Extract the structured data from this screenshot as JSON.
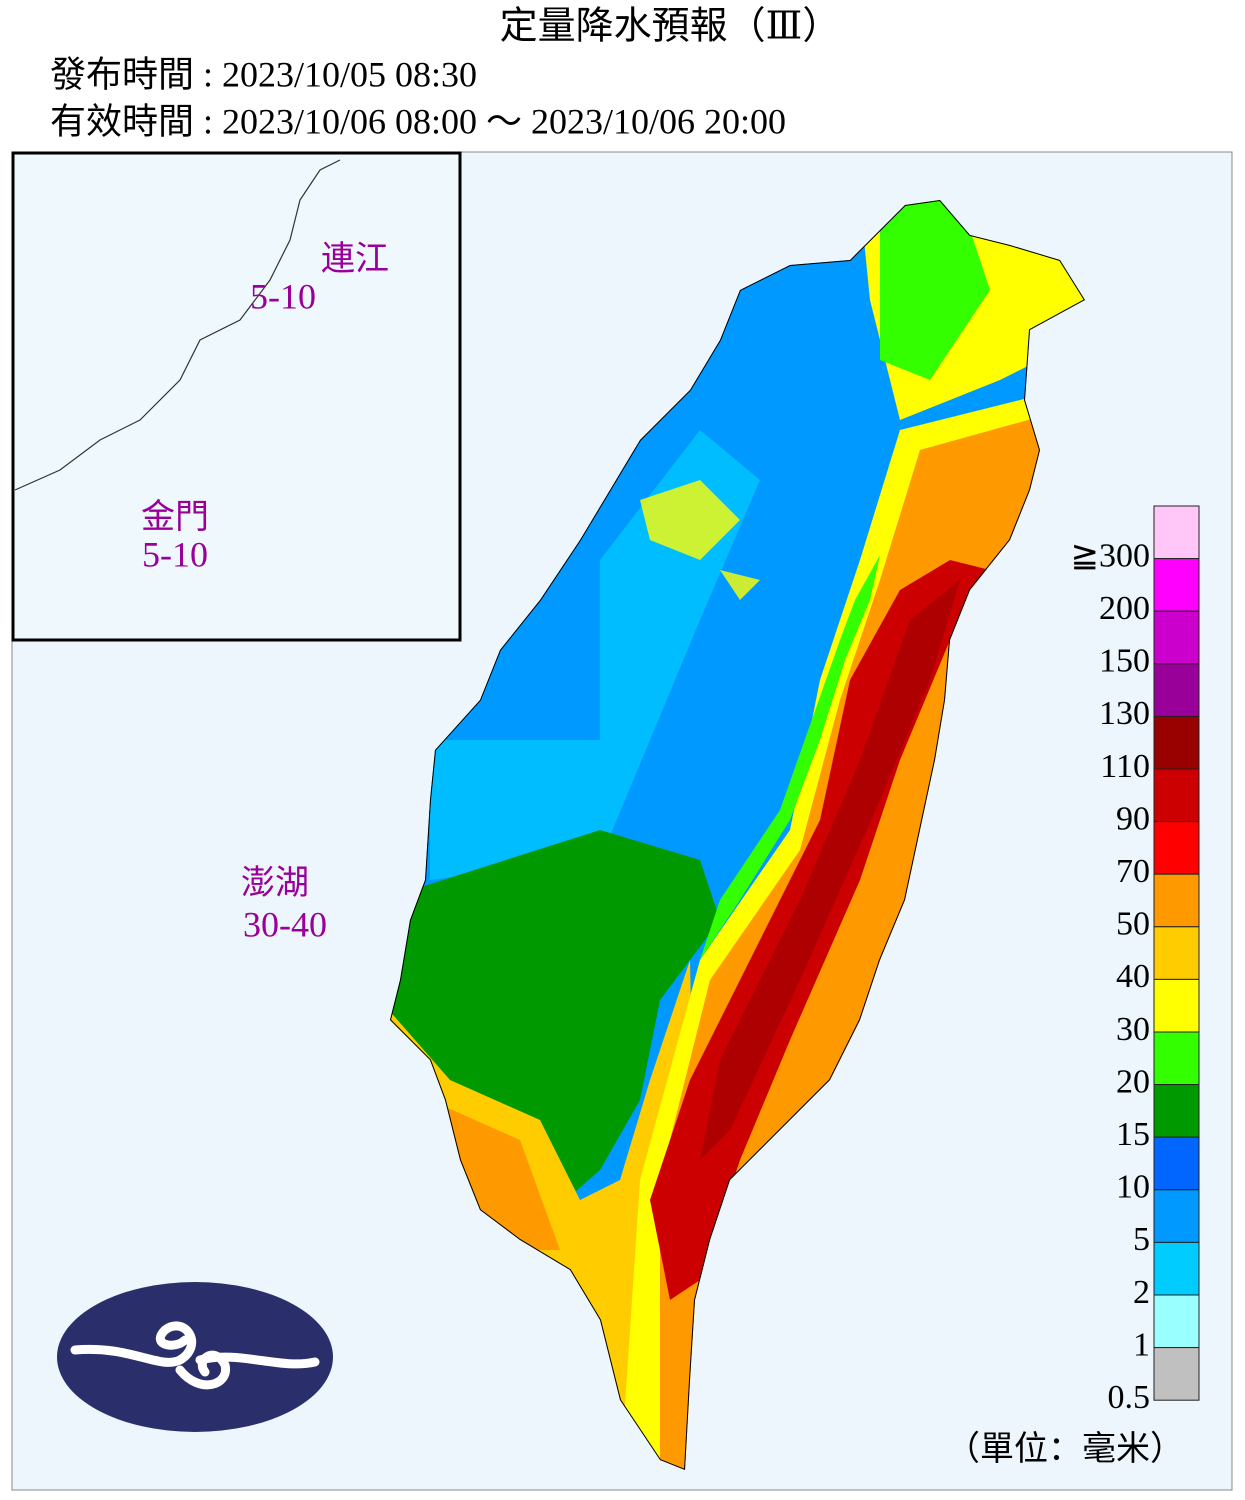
{
  "header": {
    "title": "定量降水預報（Ⅲ）",
    "issued": "發布時間 : 2023/10/05 08:30",
    "valid": "有效時間 : 2023/10/06 08:00 ～ 2023/10/06 20:00"
  },
  "regions": [
    {
      "name": "連江",
      "value": "5-10"
    },
    {
      "name": "金門",
      "value": "5-10"
    },
    {
      "name": "澎湖",
      "value": "30-40"
    }
  ],
  "legend": {
    "items": [
      {
        "label": "≧300",
        "color": "#ffc6f7"
      },
      {
        "label": "200",
        "color": "#ff00ff"
      },
      {
        "label": "150",
        "color": "#cc00cc"
      },
      {
        "label": "130",
        "color": "#990099"
      },
      {
        "label": "110",
        "color": "#990000"
      },
      {
        "label": "90",
        "color": "#cc0000"
      },
      {
        "label": "70",
        "color": "#ff0000"
      },
      {
        "label": "50",
        "color": "#ff9900"
      },
      {
        "label": "40",
        "color": "#ffcc00"
      },
      {
        "label": "30",
        "color": "#ffff00"
      },
      {
        "label": "20",
        "color": "#33ff00"
      },
      {
        "label": "15",
        "color": "#009900"
      },
      {
        "label": "10",
        "color": "#0066ff"
      },
      {
        "label": "5",
        "color": "#0099ff"
      },
      {
        "label": "2",
        "color": "#00ccff"
      },
      {
        "label": "1",
        "color": "#99ffff"
      },
      {
        "label": "0.5",
        "color": "#c0c0c0"
      }
    ],
    "unit": "（單位：毫米）"
  }
}
